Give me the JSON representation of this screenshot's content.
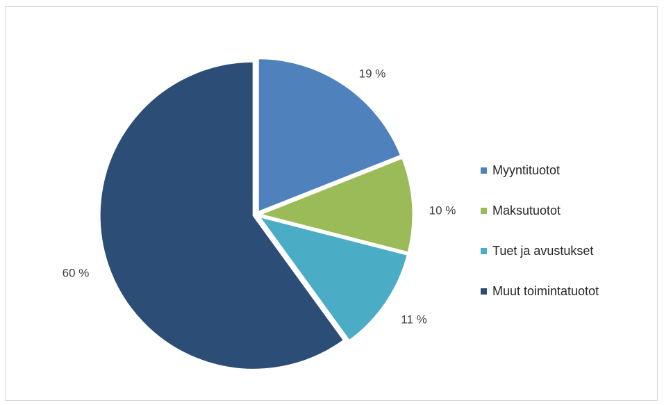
{
  "chart_data": {
    "type": "pie",
    "categories": [
      "Myyntituotot",
      "Maksutuotot",
      "Tuet ja avustukset",
      "Muut toimintatuotot"
    ],
    "values": [
      19,
      10,
      11,
      60
    ],
    "data_labels": [
      "19 %",
      "10 %",
      "11 %",
      "60 %"
    ],
    "colors": [
      "#4f81bd",
      "#9bbb59",
      "#4bacc6",
      "#2c4d75"
    ],
    "legend_position": "right",
    "exploded": true
  }
}
